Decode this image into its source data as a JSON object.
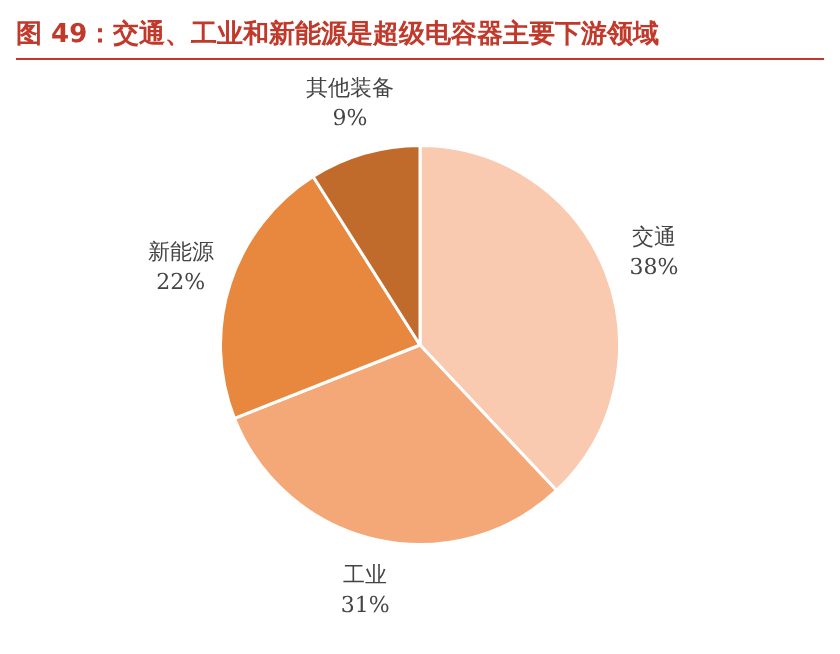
{
  "chart_data": {
    "type": "pie",
    "title": "图 49：交通、工业和新能源是超级电容器主要下游领域",
    "categories": [
      "交通",
      "工业",
      "新能源",
      "其他装备"
    ],
    "values": [
      38,
      31,
      22,
      9
    ],
    "value_labels": [
      "38%",
      "31%",
      "22%",
      "9%"
    ],
    "colors": [
      "#f9c9b0",
      "#f5a877",
      "#e8883e",
      "#c06a2c"
    ],
    "legend": false
  }
}
